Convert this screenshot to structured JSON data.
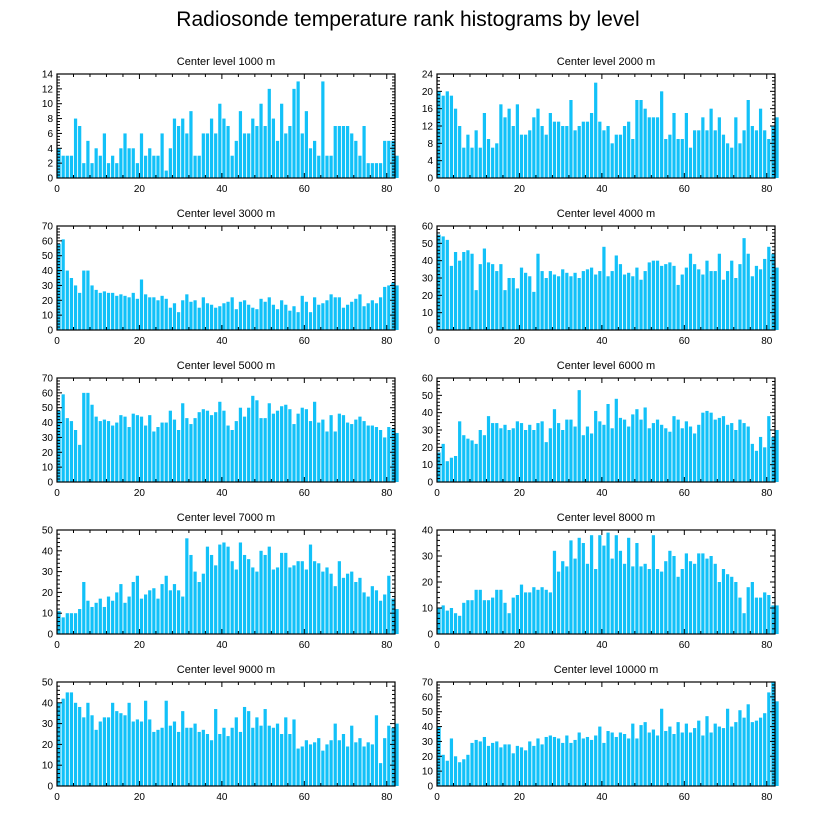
{
  "title": "Radiosonde temperature rank histograms by level",
  "colors": {
    "bar": "#12C1F8",
    "axis": "#000000",
    "background": "#ffffff"
  },
  "chart_data": [
    {
      "type": "bar",
      "title": "Center level 1000 m",
      "xlim": [
        0,
        82
      ],
      "ylim": [
        0,
        14
      ],
      "xticks": [
        0,
        20,
        40,
        60,
        80
      ],
      "yticks": [
        0,
        2,
        4,
        6,
        8,
        10,
        12,
        14
      ],
      "values": [
        4,
        3,
        3,
        3,
        8,
        7,
        2,
        5,
        2,
        4,
        3,
        6,
        2,
        3,
        2,
        4,
        6,
        4,
        4,
        2,
        6,
        3,
        4,
        3,
        3,
        6,
        1,
        4,
        8,
        7,
        8,
        6,
        9,
        3,
        3,
        6,
        6,
        8,
        6,
        10,
        8,
        7,
        3,
        5,
        9,
        6,
        6,
        8,
        7,
        10,
        7,
        12,
        8,
        5,
        10,
        6,
        7,
        12,
        13,
        6,
        9,
        4,
        5,
        3,
        13,
        3,
        3,
        7,
        7,
        7,
        7,
        6,
        5,
        3,
        7,
        2,
        2,
        2,
        2,
        5,
        5,
        5,
        3
      ]
    },
    {
      "type": "bar",
      "title": "Center level 2000 m",
      "xlim": [
        0,
        82
      ],
      "ylim": [
        0,
        24
      ],
      "xticks": [
        0,
        20,
        40,
        60,
        80
      ],
      "yticks": [
        0,
        4,
        8,
        12,
        16,
        20,
        24
      ],
      "values": [
        20,
        19,
        20,
        19,
        16,
        12,
        7,
        10,
        7,
        11,
        7,
        15,
        9,
        7,
        8,
        17,
        14,
        16,
        12,
        17,
        10,
        10,
        11,
        14,
        16,
        12,
        10,
        15,
        13,
        13,
        12,
        12,
        18,
        11,
        12,
        13,
        13,
        15,
        22,
        13,
        11,
        12,
        8,
        10,
        10,
        12,
        13,
        9,
        18,
        18,
        16,
        14,
        14,
        14,
        20,
        9,
        10,
        15,
        9,
        9,
        15,
        7,
        11,
        11,
        14,
        11,
        16,
        11,
        14,
        10,
        8,
        7,
        14,
        8,
        11,
        18,
        12,
        11,
        16,
        11,
        9,
        12,
        14
      ]
    },
    {
      "type": "bar",
      "title": "Center level 3000 m",
      "xlim": [
        0,
        82
      ],
      "ylim": [
        0,
        70
      ],
      "xticks": [
        0,
        20,
        40,
        60,
        80
      ],
      "yticks": [
        0,
        10,
        20,
        30,
        40,
        50,
        60,
        70
      ],
      "values": [
        58,
        61,
        40,
        35,
        30,
        25,
        40,
        40,
        30,
        27,
        25,
        26,
        25,
        25,
        23,
        24,
        23,
        22,
        25,
        21,
        34,
        24,
        22,
        22,
        20,
        23,
        21,
        15,
        18,
        12,
        20,
        24,
        19,
        20,
        15,
        22,
        18,
        17,
        15,
        16,
        18,
        19,
        22,
        14,
        19,
        20,
        17,
        15,
        14,
        21,
        19,
        22,
        17,
        14,
        20,
        17,
        13,
        16,
        12,
        23,
        19,
        12,
        22,
        17,
        18,
        20,
        24,
        22,
        22,
        15,
        17,
        19,
        21,
        24,
        16,
        18,
        20,
        18,
        22,
        29,
        30,
        32,
        30
      ]
    },
    {
      "type": "bar",
      "title": "Center level 4000 m",
      "xlim": [
        0,
        82
      ],
      "ylim": [
        0,
        60
      ],
      "xticks": [
        0,
        20,
        40,
        60,
        80
      ],
      "yticks": [
        0,
        10,
        20,
        30,
        40,
        50,
        60
      ],
      "values": [
        55,
        54,
        52,
        37,
        45,
        40,
        45,
        46,
        44,
        23,
        38,
        47,
        39,
        38,
        34,
        38,
        23,
        30,
        30,
        24,
        36,
        33,
        31,
        22,
        44,
        34,
        30,
        34,
        32,
        31,
        35,
        33,
        31,
        33,
        30,
        34,
        35,
        36,
        32,
        34,
        48,
        31,
        34,
        43,
        38,
        32,
        33,
        31,
        36,
        29,
        34,
        39,
        40,
        40,
        37,
        38,
        39,
        37,
        26,
        32,
        36,
        44,
        38,
        35,
        32,
        40,
        34,
        34,
        44,
        29,
        34,
        40,
        30,
        38,
        53,
        44,
        31,
        37,
        35,
        41,
        48,
        44,
        36
      ]
    },
    {
      "type": "bar",
      "title": "Center level 5000 m",
      "xlim": [
        0,
        82
      ],
      "ylim": [
        0,
        70
      ],
      "xticks": [
        0,
        20,
        40,
        60,
        80
      ],
      "yticks": [
        0,
        10,
        20,
        30,
        40,
        50,
        60,
        70
      ],
      "values": [
        48,
        59,
        43,
        41,
        35,
        25,
        60,
        60,
        52,
        44,
        41,
        42,
        41,
        38,
        40,
        45,
        44,
        37,
        46,
        45,
        44,
        38,
        45,
        34,
        37,
        40,
        40,
        48,
        42,
        35,
        53,
        43,
        39,
        43,
        47,
        49,
        48,
        45,
        47,
        54,
        48,
        38,
        35,
        41,
        50,
        44,
        50,
        58,
        55,
        43,
        43,
        53,
        46,
        48,
        51,
        52,
        49,
        39,
        46,
        50,
        49,
        41,
        54,
        40,
        42,
        34,
        45,
        34,
        46,
        45,
        40,
        39,
        42,
        44,
        41,
        38,
        38,
        37,
        35,
        30,
        37,
        36,
        33
      ]
    },
    {
      "type": "bar",
      "title": "Center level 6000 m",
      "xlim": [
        0,
        82
      ],
      "ylim": [
        0,
        60
      ],
      "xticks": [
        0,
        20,
        40,
        60,
        80
      ],
      "yticks": [
        0,
        10,
        20,
        30,
        40,
        50,
        60
      ],
      "values": [
        17,
        22,
        12,
        14,
        15,
        35,
        27,
        25,
        24,
        22,
        30,
        27,
        38,
        34,
        34,
        31,
        33,
        30,
        31,
        35,
        34,
        30,
        33,
        30,
        34,
        35,
        23,
        31,
        42,
        34,
        30,
        36,
        36,
        32,
        53,
        27,
        32,
        28,
        41,
        35,
        33,
        45,
        31,
        48,
        37,
        36,
        32,
        39,
        42,
        36,
        43,
        31,
        34,
        36,
        33,
        31,
        29,
        38,
        36,
        31,
        35,
        32,
        28,
        33,
        40,
        41,
        40,
        36,
        37,
        38,
        33,
        34,
        30,
        36,
        34,
        32,
        22,
        18,
        26,
        20,
        38,
        26,
        30
      ]
    },
    {
      "type": "bar",
      "title": "Center level 7000 m",
      "xlim": [
        0,
        82
      ],
      "ylim": [
        0,
        50
      ],
      "xticks": [
        0,
        20,
        40,
        60,
        80
      ],
      "yticks": [
        0,
        10,
        20,
        30,
        40,
        50
      ],
      "values": [
        11,
        8,
        10,
        10,
        10,
        12,
        25,
        16,
        13,
        15,
        17,
        13,
        18,
        16,
        20,
        24,
        15,
        18,
        25,
        28,
        17,
        19,
        21,
        22,
        17,
        24,
        28,
        21,
        24,
        21,
        18,
        46,
        38,
        30,
        25,
        29,
        42,
        38,
        33,
        43,
        44,
        42,
        35,
        31,
        44,
        38,
        36,
        32,
        30,
        40,
        38,
        42,
        31,
        32,
        39,
        39,
        32,
        33,
        35,
        35,
        31,
        43,
        35,
        34,
        30,
        32,
        29,
        23,
        35,
        27,
        29,
        30,
        25,
        27,
        20,
        18,
        23,
        21,
        16,
        19,
        28,
        17,
        12
      ]
    },
    {
      "type": "bar",
      "title": "Center level 8000 m",
      "xlim": [
        0,
        82
      ],
      "ylim": [
        0,
        40
      ],
      "xticks": [
        0,
        20,
        40,
        60,
        80
      ],
      "yticks": [
        0,
        10,
        20,
        30,
        40
      ],
      "values": [
        10,
        11,
        9,
        10,
        8,
        7,
        12,
        13,
        13,
        17,
        17,
        13,
        13,
        14,
        17,
        17,
        12,
        8,
        14,
        15,
        19,
        16,
        16,
        18,
        17,
        18,
        17,
        16,
        32,
        24,
        28,
        26,
        36,
        29,
        37,
        35,
        27,
        38,
        25,
        38,
        34,
        39,
        29,
        38,
        32,
        27,
        37,
        26,
        35,
        26,
        27,
        25,
        38,
        25,
        24,
        28,
        32,
        30,
        22,
        25,
        31,
        28,
        27,
        31,
        31,
        29,
        30,
        27,
        20,
        25,
        23,
        22,
        20,
        14,
        8,
        18,
        20,
        14,
        14,
        16,
        15,
        11,
        11
      ]
    },
    {
      "type": "bar",
      "title": "Center level 9000 m",
      "xlim": [
        0,
        82
      ],
      "ylim": [
        0,
        50
      ],
      "xticks": [
        0,
        20,
        40,
        60,
        80
      ],
      "yticks": [
        0,
        10,
        20,
        30,
        40,
        50
      ],
      "values": [
        40,
        42,
        45,
        45,
        40,
        38,
        33,
        40,
        34,
        27,
        31,
        33,
        33,
        40,
        36,
        35,
        34,
        40,
        31,
        32,
        31,
        41,
        32,
        26,
        27,
        28,
        41,
        29,
        31,
        26,
        36,
        28,
        28,
        30,
        26,
        27,
        25,
        22,
        37,
        25,
        28,
        24,
        28,
        33,
        26,
        38,
        36,
        28,
        33,
        29,
        37,
        29,
        28,
        30,
        25,
        33,
        25,
        32,
        18,
        19,
        22,
        20,
        21,
        23,
        17,
        20,
        22,
        30,
        22,
        25,
        19,
        29,
        21,
        23,
        19,
        21,
        20,
        34,
        11,
        23,
        29,
        28,
        30
      ]
    },
    {
      "type": "bar",
      "title": "Center level 10000 m",
      "xlim": [
        0,
        82
      ],
      "ylim": [
        0,
        70
      ],
      "xticks": [
        0,
        20,
        40,
        60,
        80
      ],
      "yticks": [
        0,
        10,
        20,
        30,
        40,
        50,
        60,
        70
      ],
      "values": [
        40,
        21,
        17,
        32,
        20,
        16,
        18,
        21,
        29,
        31,
        30,
        33,
        27,
        29,
        30,
        26,
        28,
        28,
        22,
        27,
        26,
        24,
        30,
        27,
        32,
        28,
        33,
        34,
        33,
        32,
        29,
        34,
        29,
        31,
        36,
        32,
        33,
        31,
        34,
        40,
        29,
        37,
        36,
        33,
        36,
        35,
        32,
        42,
        32,
        41,
        43,
        36,
        38,
        34,
        52,
        37,
        40,
        35,
        43,
        36,
        42,
        36,
        39,
        44,
        34,
        47,
        36,
        42,
        40,
        39,
        52,
        40,
        43,
        51,
        46,
        55,
        43,
        44,
        46,
        49,
        63,
        70,
        57
      ]
    }
  ]
}
